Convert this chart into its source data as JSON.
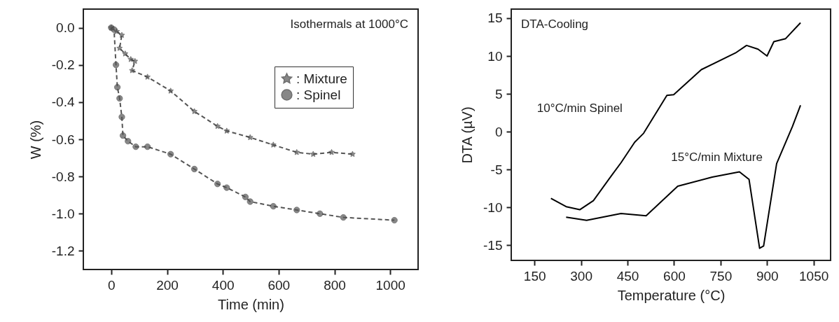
{
  "chart_data": [
    {
      "type": "line",
      "xlabel": "Time (min)",
      "ylabel": "W (%)",
      "xlim": [
        -100,
        1100
      ],
      "ylim": [
        -1.3,
        0.1
      ],
      "xticks": [
        0,
        200,
        400,
        600,
        800,
        1000
      ],
      "yticks": [
        {
          "value": 0,
          "label": "0.0"
        },
        -0.2,
        -0.4,
        -0.6,
        -0.8,
        {
          "value": -1,
          "label": "-1.0"
        },
        -1.2
      ],
      "legend": "top right",
      "line_style": "dashed",
      "grid": false,
      "annotations": [
        "Isothermals at 1000°C"
      ],
      "series": [
        {
          "name": ": Mixture",
          "color": "#555555",
          "marker": "star",
          "x": [
            0,
            10,
            20,
            38,
            30,
            50,
            70,
            85,
            75,
            130,
            213,
            298,
            381,
            414,
            498,
            581,
            665,
            724,
            790,
            865
          ],
          "values": [
            0,
            null,
            -0.02,
            -0.04,
            -0.11,
            -0.14,
            -0.17,
            -0.18,
            -0.23,
            -0.265,
            -0.34,
            -0.45,
            -0.53,
            -0.555,
            -0.59,
            -0.63,
            -0.67,
            -0.68,
            -0.67,
            -0.68
          ]
        },
        {
          "name": ": Spinel",
          "color": "#555555",
          "marker": "circle",
          "x": [
            0,
            10,
            17,
            22,
            30,
            38,
            42,
            60,
            88,
            130,
            213,
            298,
            381,
            414,
            481,
            498,
            581,
            665,
            748,
            832,
            1015
          ],
          "values": [
            0,
            -0.01,
            -0.2,
            -0.32,
            -0.38,
            -0.48,
            -0.58,
            -0.61,
            -0.64,
            -0.64,
            -0.68,
            -0.76,
            -0.84,
            -0.86,
            -0.91,
            -0.935,
            -0.96,
            -0.98,
            -1.0,
            -1.02,
            -1.035
          ]
        }
      ]
    },
    {
      "type": "line",
      "xlabel": "Temperature (°C)",
      "ylabel": "DTA (µV)",
      "xlim": [
        75,
        1105
      ],
      "ylim": [
        -17,
        16.2
      ],
      "xticks": [
        150,
        300,
        450,
        600,
        750,
        900,
        1050
      ],
      "yticks": [
        -15,
        -10,
        -5,
        0,
        5,
        10,
        15
      ],
      "grid": false,
      "line_style": "solid",
      "annotations": [
        "DTA-Cooling",
        "10°C/min  Spinel",
        "15°C/min  Mixture"
      ],
      "series": [
        {
          "color": "#000000",
          "marker": "none",
          "x": [
            203,
            252,
            296,
            340,
            400,
            429,
            473,
            502,
            577,
            599,
            688,
            798,
            834,
            871,
            900,
            922,
            960,
            1008
          ],
          "values": [
            -8.8,
            -9.9,
            -10.3,
            -9.1,
            -5.7,
            -4.1,
            -1.4,
            -0.2,
            4.8,
            4.9,
            8.2,
            10.4,
            11.4,
            10.9,
            10.0,
            11.9,
            12.3,
            14.4
          ]
        },
        {
          "color": "#000000",
          "marker": "none",
          "x": [
            252,
            318,
            429,
            510,
            612,
            723,
            811,
            842,
            876,
            889,
            931,
            982,
            1008
          ],
          "values": [
            -11.3,
            -11.7,
            -10.8,
            -11.1,
            -7.2,
            -6.0,
            -5.3,
            -6.3,
            -15.4,
            -15.1,
            -4.2,
            0.7,
            3.5
          ]
        }
      ]
    }
  ]
}
